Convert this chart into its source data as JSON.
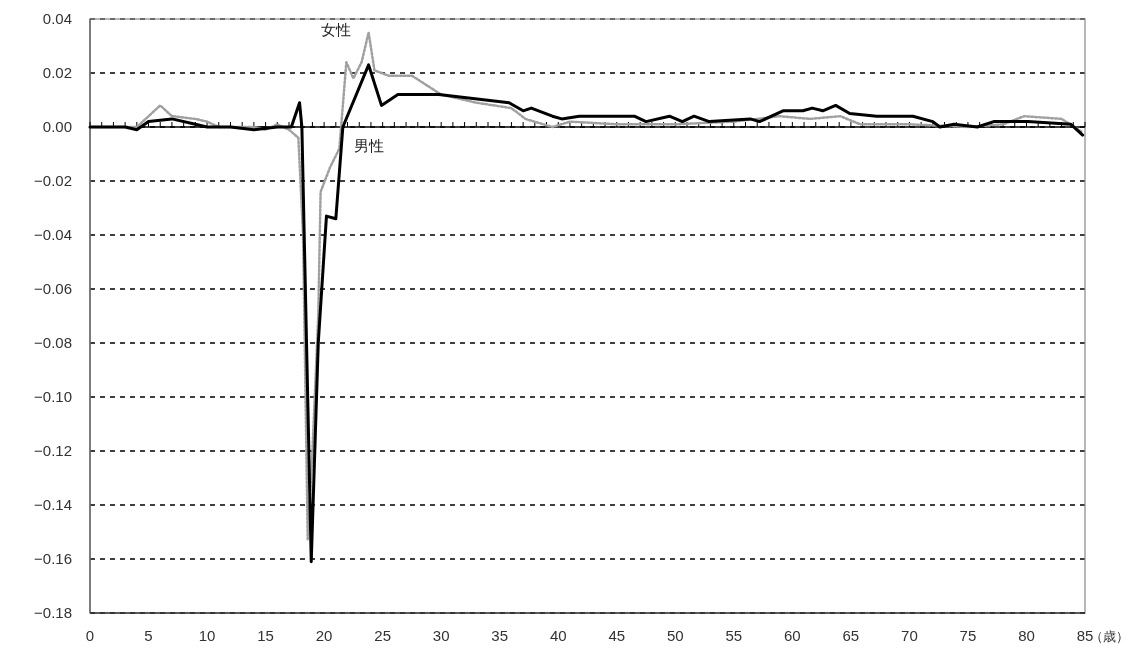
{
  "chart_data": {
    "type": "line",
    "xlabel": "（歳）",
    "xlim": [
      0,
      85
    ],
    "xticks": [
      0,
      {
        "value": 1,
        "label": null
      },
      {
        "value": 2,
        "label": null
      },
      {
        "value": 3,
        "label": null
      },
      {
        "value": 4,
        "label": null
      },
      5,
      {
        "value": 6,
        "label": null
      },
      {
        "value": 7,
        "label": null
      },
      {
        "value": 8,
        "label": null
      },
      {
        "value": 9,
        "label": null
      },
      10,
      {
        "value": 11,
        "label": null
      },
      {
        "value": 12,
        "label": null
      },
      {
        "value": 13,
        "label": null
      },
      {
        "value": 14,
        "label": null
      },
      15,
      {
        "value": 16,
        "label": null
      },
      {
        "value": 17,
        "label": null
      },
      {
        "value": 18,
        "label": null
      },
      {
        "value": 19,
        "label": null
      },
      20,
      {
        "value": 21,
        "label": null
      },
      {
        "value": 22,
        "label": null
      },
      {
        "value": 23,
        "label": null
      },
      {
        "value": 24,
        "label": null
      },
      25,
      {
        "value": 26,
        "label": null
      },
      {
        "value": 27,
        "label": null
      },
      {
        "value": 28,
        "label": null
      },
      {
        "value": 29,
        "label": null
      },
      30,
      {
        "value": 31,
        "label": null
      },
      {
        "value": 32,
        "label": null
      },
      {
        "value": 33,
        "label": null
      },
      {
        "value": 34,
        "label": null
      },
      35,
      {
        "value": 36,
        "label": null
      },
      {
        "value": 37,
        "label": null
      },
      {
        "value": 38,
        "label": null
      },
      {
        "value": 39,
        "label": null
      },
      40,
      {
        "value": 41,
        "label": null
      },
      {
        "value": 42,
        "label": null
      },
      {
        "value": 43,
        "label": null
      },
      {
        "value": 44,
        "label": null
      },
      45,
      {
        "value": 46,
        "label": null
      },
      {
        "value": 47,
        "label": null
      },
      {
        "value": 48,
        "label": null
      },
      {
        "value": 49,
        "label": null
      },
      50,
      {
        "value": 51,
        "label": null
      },
      {
        "value": 52,
        "label": null
      },
      {
        "value": 53,
        "label": null
      },
      {
        "value": 54,
        "label": null
      },
      55,
      {
        "value": 56,
        "label": null
      },
      {
        "value": 57,
        "label": null
      },
      {
        "value": 58,
        "label": null
      },
      {
        "value": 59,
        "label": null
      },
      60,
      {
        "value": 61,
        "label": null
      },
      {
        "value": 62,
        "label": null
      },
      {
        "value": 63,
        "label": null
      },
      {
        "value": 64,
        "label": null
      },
      65,
      {
        "value": 66,
        "label": null
      },
      {
        "value": 67,
        "label": null
      },
      {
        "value": 68,
        "label": null
      },
      {
        "value": 69,
        "label": null
      },
      70,
      {
        "value": 71,
        "label": null
      },
      {
        "value": 72,
        "label": null
      },
      {
        "value": 73,
        "label": null
      },
      {
        "value": 74,
        "label": null
      },
      75,
      {
        "value": 76,
        "label": null
      },
      {
        "value": 77,
        "label": null
      },
      {
        "value": 78,
        "label": null
      },
      {
        "value": 79,
        "label": null
      },
      80,
      {
        "value": 81,
        "label": null
      },
      {
        "value": 82,
        "label": null
      },
      {
        "value": 83,
        "label": null
      },
      {
        "value": 84,
        "label": null
      },
      85
    ],
    "ylim": [
      -0.18,
      0.04
    ],
    "yticks": [
      {
        "value": 0.04,
        "label": "0.04"
      },
      {
        "value": 0.02,
        "label": "0.02"
      },
      {
        "value": 0,
        "label": "0.00"
      },
      {
        "value": -0.02,
        "label": "−0.02"
      },
      {
        "value": -0.04,
        "label": "−0.04"
      },
      {
        "value": -0.06,
        "label": "−0.06"
      },
      {
        "value": -0.08,
        "label": "−0.08"
      },
      {
        "value": -0.1,
        "label": "−0.10"
      },
      {
        "value": -0.12,
        "label": "−0.12"
      },
      {
        "value": -0.14,
        "label": "−0.14"
      },
      {
        "value": -0.16,
        "label": "−0.16"
      },
      {
        "value": -0.18,
        "label": "−0.18"
      }
    ],
    "grid": "y",
    "marker": "none",
    "series": [
      {
        "name": "男性",
        "color": "#000000",
        "line_style": "solid",
        "x": [
          0,
          3,
          4,
          5,
          7,
          9,
          10,
          12,
          14,
          16,
          17.2,
          17.9,
          18.1,
          18.9,
          19.5,
          20.2,
          21.0,
          21.6,
          23.8,
          24.9,
          26.3,
          29.8,
          33.8,
          35.8,
          37.0,
          37.7,
          39.5,
          40.3,
          41.8,
          46.5,
          47.5,
          49.5,
          50.6,
          51.6,
          52.9,
          56.4,
          57.2,
          59.2,
          60.9,
          61.7,
          62.6,
          63.7,
          64.9,
          67.2,
          70.3,
          72.0,
          72.6,
          73.8,
          75.8,
          77.2,
          80.1,
          83.8,
          84.8
        ],
        "values": [
          0,
          0,
          -0.001,
          0.002,
          0.003,
          0.001,
          0,
          0,
          -0.001,
          0,
          0,
          0.009,
          0,
          -0.161,
          -0.08,
          -0.033,
          -0.034,
          0,
          0.023,
          0.008,
          0.012,
          0.012,
          0.01,
          0.009,
          0.006,
          0.007,
          0.004,
          0.003,
          0.004,
          0.004,
          0.002,
          0.004,
          0.002,
          0.004,
          0.002,
          0.003,
          0.002,
          0.006,
          0.006,
          0.007,
          0.006,
          0.008,
          0.005,
          0.004,
          0.004,
          0.002,
          0,
          0.001,
          0,
          0.002,
          0.002,
          0.001,
          -0.003
        ]
      },
      {
        "name": "女性",
        "color": "#a0a0a0",
        "line_style": "dotted",
        "x": [
          0,
          3,
          4,
          6,
          7,
          9,
          10,
          11,
          12,
          14,
          15,
          16,
          17,
          17.8,
          18.2,
          18.6,
          19.0,
          19.5,
          19.7,
          20.5,
          21.3,
          21.9,
          22.5,
          23.2,
          23.8,
          24.3,
          25.5,
          27.5,
          30,
          33,
          36,
          37.2,
          39.5,
          41,
          45,
          50,
          55,
          58.9,
          61.5,
          64.1,
          65.8,
          70,
          75,
          78,
          79.8,
          83,
          84.8
        ],
        "values": [
          0,
          0,
          0,
          0.008,
          0.004,
          0.003,
          0.002,
          0,
          0,
          0,
          -0.001,
          0.001,
          -0.001,
          -0.004,
          -0.04,
          -0.153,
          -0.12,
          -0.07,
          -0.024,
          -0.015,
          -0.008,
          0.024,
          0.018,
          0.024,
          0.035,
          0.021,
          0.019,
          0.019,
          0.012,
          0.009,
          0.007,
          0.003,
          0,
          0.002,
          0.001,
          0.001,
          0.002,
          0.004,
          0.003,
          0.004,
          0.001,
          0.001,
          0,
          0.001,
          0.004,
          0.003,
          -0.002
        ]
      }
    ]
  }
}
